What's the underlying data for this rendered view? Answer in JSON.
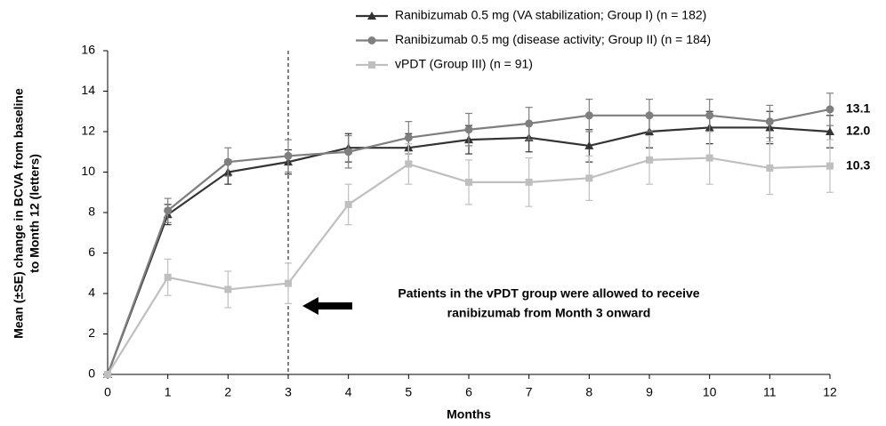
{
  "chart_data": {
    "type": "line",
    "y_label": [
      "Mean (±SE) change in BCVA from baseline",
      "to Month 12 (letters)"
    ],
    "x_label": "Months",
    "x": [
      0,
      1,
      2,
      3,
      4,
      5,
      6,
      7,
      8,
      9,
      10,
      11,
      12
    ],
    "xlim": [
      0,
      12
    ],
    "xticks": [
      0,
      1,
      2,
      3,
      4,
      5,
      6,
      7,
      8,
      9,
      10,
      11,
      12
    ],
    "ylim": [
      0,
      16
    ],
    "yticks": [
      0,
      2,
      4,
      6,
      8,
      10,
      12,
      14,
      16
    ],
    "grid": false,
    "vline": 3,
    "annotation": [
      "Patients in the vPDT group were allowed to receive",
      "ranibizumab from Month 3 onward"
    ],
    "series": [
      {
        "name": "Ranibizumab 0.5 mg (VA stabilization; Group I) (n = 182)",
        "color": "#333333",
        "marker": "triangle",
        "values": [
          0,
          7.9,
          10.0,
          10.5,
          11.2,
          11.2,
          11.6,
          11.7,
          11.3,
          12.0,
          12.2,
          12.2,
          12.0
        ],
        "errors": [
          0,
          0.5,
          0.6,
          0.6,
          0.7,
          0.7,
          0.7,
          0.7,
          0.8,
          0.8,
          0.8,
          0.8,
          0.8
        ],
        "value_labels": [
          null,
          null,
          null,
          null,
          null,
          null,
          null,
          null,
          null,
          null,
          null,
          null,
          "12.0"
        ]
      },
      {
        "name": "Ranibizumab 0.5 mg (disease activity; Group II) (n = 184)",
        "color": "#7f7f7f",
        "marker": "circle",
        "values": [
          0,
          8.1,
          10.5,
          10.8,
          11.0,
          11.7,
          12.1,
          12.4,
          12.8,
          12.8,
          12.8,
          12.5,
          13.1
        ],
        "errors": [
          0,
          0.6,
          0.7,
          0.8,
          0.8,
          0.8,
          0.8,
          0.8,
          0.8,
          0.8,
          0.8,
          0.8,
          0.8
        ],
        "value_labels": [
          null,
          null,
          null,
          null,
          null,
          null,
          null,
          null,
          null,
          null,
          null,
          null,
          "13.1"
        ]
      },
      {
        "name": "vPDT (Group III) (n = 91)",
        "color": "#bfbfbf",
        "marker": "square",
        "values": [
          0,
          4.8,
          4.2,
          4.5,
          8.4,
          10.4,
          9.5,
          9.5,
          9.7,
          10.6,
          10.7,
          10.2,
          10.3
        ],
        "errors": [
          0,
          0.9,
          0.9,
          1.0,
          1.0,
          1.0,
          1.1,
          1.2,
          1.1,
          1.2,
          1.3,
          1.3,
          1.3
        ],
        "value_labels": [
          null,
          null,
          null,
          null,
          null,
          null,
          null,
          null,
          null,
          null,
          null,
          null,
          "10.3"
        ]
      }
    ]
  }
}
